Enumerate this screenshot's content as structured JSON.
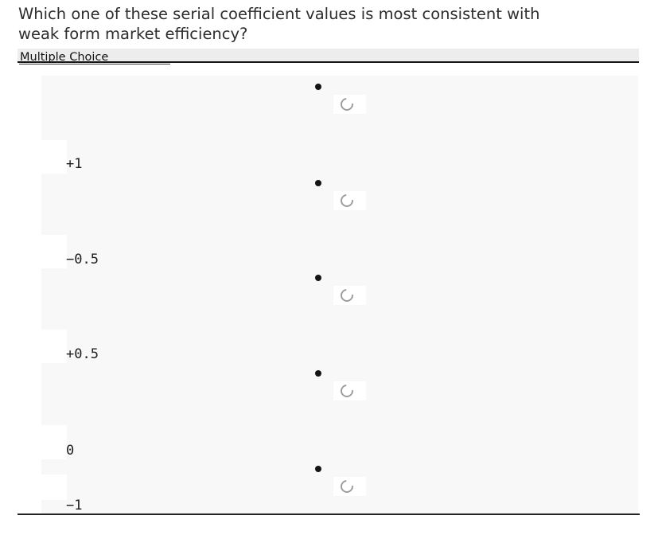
{
  "question": {
    "text": "Which one of these serial coefficient values is most consistent with\nweak form market efficiency?"
  },
  "question_type": {
    "label": "Multiple Choice"
  },
  "options": [
    {
      "label": "+1"
    },
    {
      "label": "−0.5"
    },
    {
      "label": "+0.5"
    },
    {
      "label": "0"
    },
    {
      "label": "−1"
    }
  ],
  "icons": {
    "bullet": "bullet-dot",
    "radio_state": "spinner"
  },
  "colors": {
    "page_bg": "#ffffff",
    "answers_bg": "#f8f8f8",
    "type_bar_bg": "#ededed",
    "rule": "#151515",
    "spinner": "#9d9d9d",
    "question_text": "#2d2d2d",
    "option_text": "#1e1e1e"
  }
}
